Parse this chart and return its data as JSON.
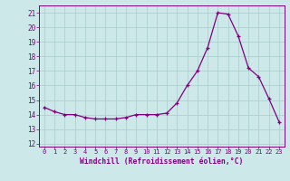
{
  "x": [
    0,
    1,
    2,
    3,
    4,
    5,
    6,
    7,
    8,
    9,
    10,
    11,
    12,
    13,
    14,
    15,
    16,
    17,
    18,
    19,
    20,
    21,
    22,
    23
  ],
  "y": [
    14.5,
    14.2,
    14.0,
    14.0,
    13.8,
    13.7,
    13.7,
    13.7,
    13.8,
    14.0,
    14.0,
    14.0,
    14.1,
    14.8,
    16.0,
    17.0,
    18.6,
    21.0,
    20.9,
    19.4,
    17.2,
    16.6,
    15.1,
    13.5
  ],
  "line_color": "#800080",
  "marker_color": "#800080",
  "bg_color": "#cce8e8",
  "grid_color": "#aacaca",
  "xlabel": "Windchill (Refroidissement éolien,°C)",
  "xlim": [
    -0.5,
    23.5
  ],
  "ylim": [
    11.8,
    21.5
  ],
  "yticks": [
    12,
    13,
    14,
    15,
    16,
    17,
    18,
    19,
    20,
    21
  ],
  "xticks": [
    0,
    1,
    2,
    3,
    4,
    5,
    6,
    7,
    8,
    9,
    10,
    11,
    12,
    13,
    14,
    15,
    16,
    17,
    18,
    19,
    20,
    21,
    22,
    23
  ]
}
